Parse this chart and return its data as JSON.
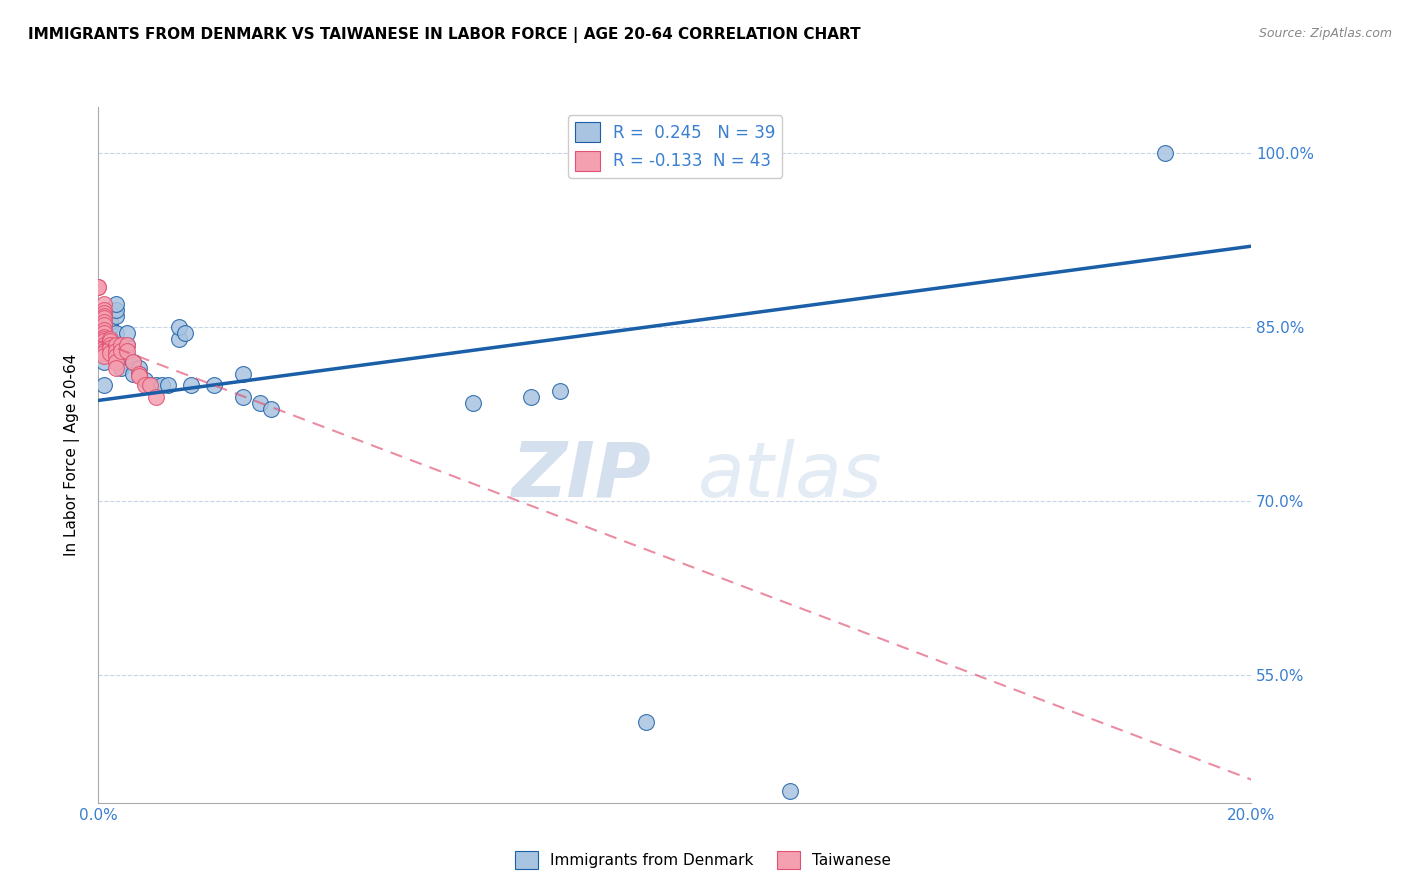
{
  "title": "IMMIGRANTS FROM DENMARK VS TAIWANESE IN LABOR FORCE | AGE 20-64 CORRELATION CHART",
  "source": "Source: ZipAtlas.com",
  "ylabel": "In Labor Force | Age 20-64",
  "xlim": [
    0.0,
    0.2
  ],
  "ylim": [
    0.44,
    1.04
  ],
  "xticks": [
    0.0,
    0.04,
    0.08,
    0.12,
    0.16,
    0.2
  ],
  "xticklabels": [
    "0.0%",
    "",
    "",
    "",
    "",
    "20.0%"
  ],
  "yticks": [
    0.55,
    0.7,
    0.85,
    1.0
  ],
  "yticklabels": [
    "55.0%",
    "70.0%",
    "85.0%",
    "100.0%"
  ],
  "denmark_color": "#a8c4e0",
  "danish_line_color": "#1a5fa8",
  "taiwanese_color": "#f4a0b0",
  "taiwanese_line_color": "#e05070",
  "R_denmark": 0.245,
  "N_denmark": 39,
  "R_taiwanese": -0.133,
  "N_taiwanese": 43,
  "watermark_zip": "ZIP",
  "watermark_atlas": "atlas",
  "legend_label_denmark": "Immigrants from Denmark",
  "legend_label_taiwanese": "Taiwanese",
  "denmark_x": [
    0.001,
    0.001,
    0.002,
    0.002,
    0.002,
    0.003,
    0.003,
    0.003,
    0.003,
    0.004,
    0.004,
    0.004,
    0.005,
    0.005,
    0.005,
    0.006,
    0.006,
    0.007,
    0.007,
    0.008,
    0.009,
    0.01,
    0.011,
    0.012,
    0.014,
    0.014,
    0.015,
    0.016,
    0.02,
    0.025,
    0.025,
    0.028,
    0.03,
    0.065,
    0.075,
    0.08,
    0.095,
    0.12,
    0.185
  ],
  "denmark_y": [
    0.8,
    0.82,
    0.84,
    0.85,
    0.855,
    0.86,
    0.865,
    0.87,
    0.845,
    0.835,
    0.82,
    0.815,
    0.835,
    0.845,
    0.825,
    0.81,
    0.82,
    0.815,
    0.81,
    0.805,
    0.8,
    0.8,
    0.8,
    0.8,
    0.84,
    0.85,
    0.845,
    0.8,
    0.8,
    0.81,
    0.79,
    0.785,
    0.78,
    0.785,
    0.79,
    0.795,
    0.51,
    0.45,
    1.0
  ],
  "taiwanese_x": [
    0.0,
    0.0,
    0.0,
    0.0,
    0.0,
    0.0,
    0.001,
    0.001,
    0.001,
    0.001,
    0.001,
    0.001,
    0.001,
    0.001,
    0.001,
    0.001,
    0.001,
    0.001,
    0.001,
    0.001,
    0.001,
    0.001,
    0.001,
    0.002,
    0.002,
    0.002,
    0.002,
    0.002,
    0.003,
    0.003,
    0.003,
    0.003,
    0.003,
    0.004,
    0.004,
    0.005,
    0.005,
    0.006,
    0.007,
    0.007,
    0.008,
    0.009,
    0.01
  ],
  "taiwanese_y": [
    0.885,
    0.885,
    0.85,
    0.84,
    0.838,
    0.836,
    0.87,
    0.865,
    0.862,
    0.86,
    0.858,
    0.855,
    0.852,
    0.848,
    0.845,
    0.842,
    0.84,
    0.838,
    0.835,
    0.832,
    0.83,
    0.828,
    0.825,
    0.84,
    0.838,
    0.835,
    0.832,
    0.828,
    0.835,
    0.83,
    0.825,
    0.82,
    0.815,
    0.835,
    0.83,
    0.835,
    0.83,
    0.82,
    0.81,
    0.808,
    0.8,
    0.8,
    0.79
  ],
  "denmark_line_x": [
    0.0,
    0.2
  ],
  "denmark_line_y": [
    0.787,
    0.92
  ],
  "taiwanese_line_x": [
    0.0,
    0.2
  ],
  "taiwanese_line_y": [
    0.838,
    0.46
  ],
  "grid_color": "#c8d4e8",
  "title_fontsize": 11,
  "source_fontsize": 9,
  "tick_color": "#3a7fd0",
  "legend_text_color": "#3a7fd0"
}
